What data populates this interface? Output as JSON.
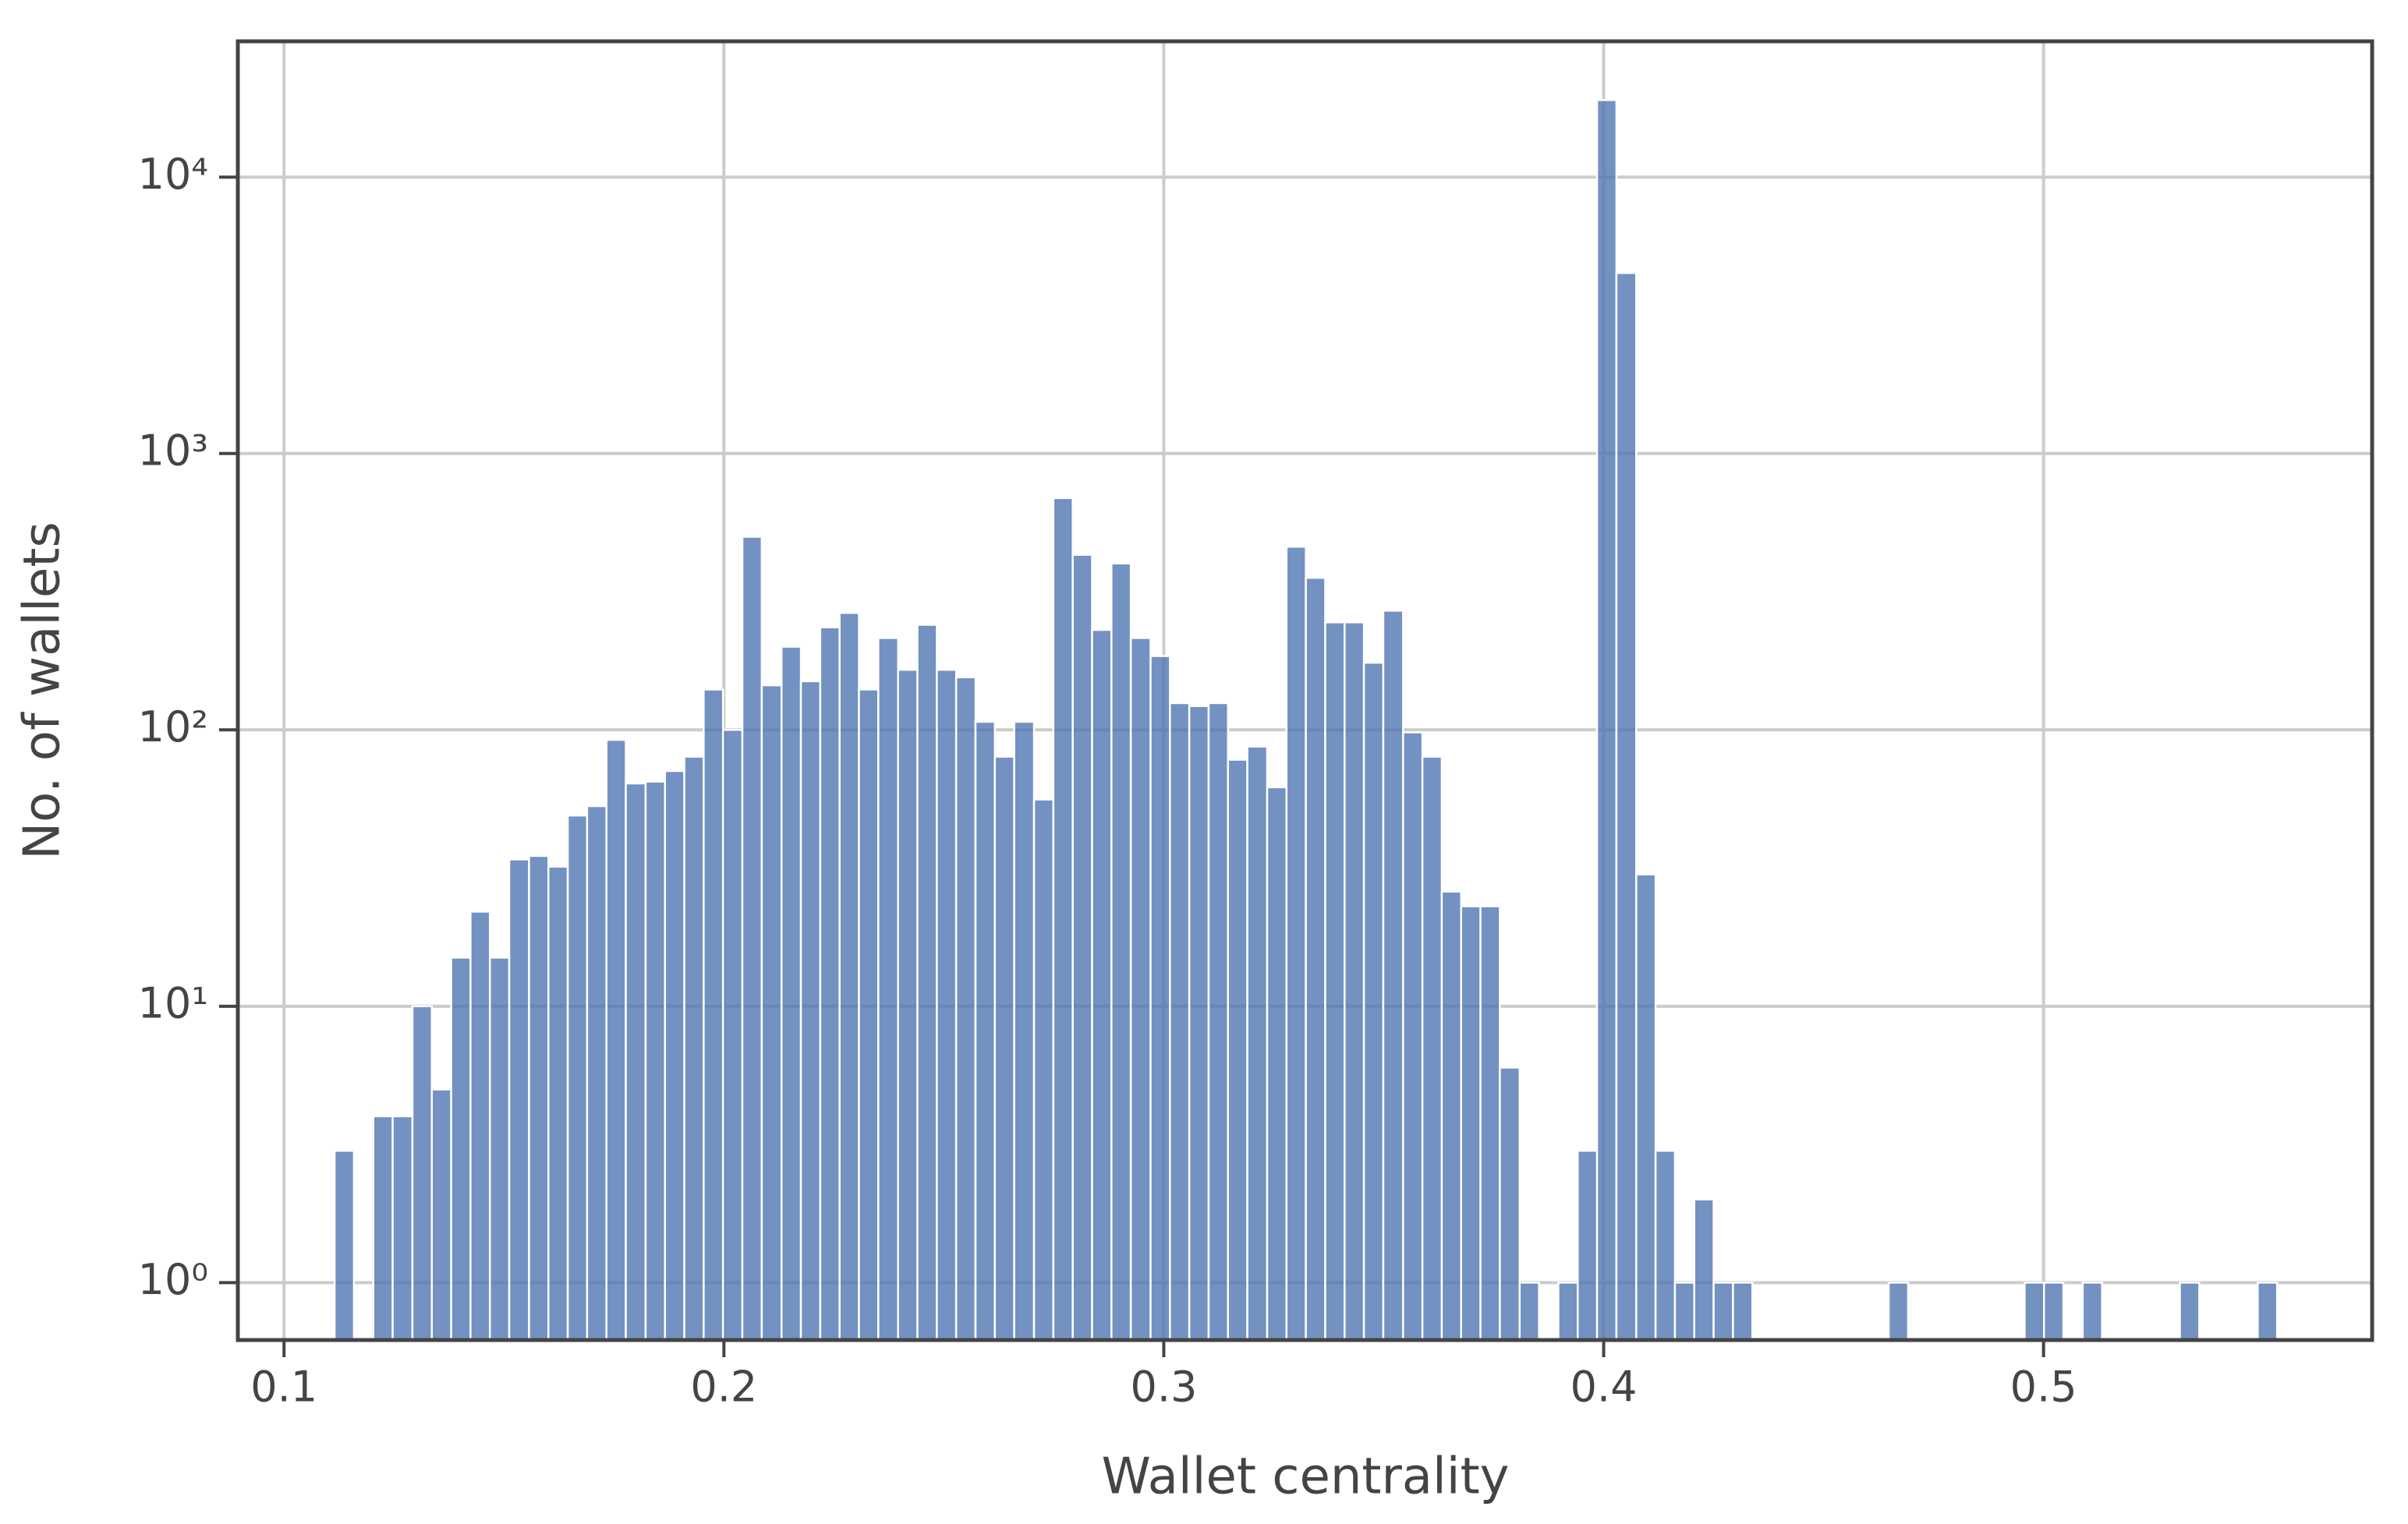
{
  "chart_data": {
    "type": "histogram",
    "x_label": "Wallet centrality",
    "y_label": "No. of wallets",
    "color": "#4c72b0",
    "yscale": "log",
    "grid": true,
    "bins": [
      0.1115,
      0.1159,
      0.1203,
      0.1247,
      0.1292,
      0.1336,
      0.138,
      0.1424,
      0.1468,
      0.1512,
      0.1557,
      0.1601,
      0.1645,
      0.1689,
      0.1733,
      0.1777,
      0.1822,
      0.1866,
      0.191,
      0.1954,
      0.1998,
      0.2042,
      0.2086,
      0.2131,
      0.2175,
      0.2219,
      0.2263,
      0.2307,
      0.2351,
      0.2396,
      0.244,
      0.2484,
      0.2528,
      0.2572,
      0.2616,
      0.266,
      0.2705,
      0.2749,
      0.2793,
      0.2837,
      0.2881,
      0.2925,
      0.297,
      0.3014,
      0.3058,
      0.3102,
      0.3146,
      0.319,
      0.3235,
      0.3279,
      0.3323,
      0.3367,
      0.3411,
      0.3455,
      0.3499,
      0.3544,
      0.3588,
      0.3632,
      0.3676,
      0.372,
      0.3764,
      0.3809,
      0.3853,
      0.3897,
      0.3941,
      0.3985,
      0.4029,
      0.4074,
      0.4118,
      0.4162,
      0.4206,
      0.425,
      0.4294,
      0.4338,
      0.4383,
      0.4427,
      0.4471,
      0.4515,
      0.4559,
      0.4603,
      0.4648,
      0.4692,
      0.4736,
      0.478,
      0.4824,
      0.4868,
      0.4913,
      0.4957,
      0.5001,
      0.5045,
      0.5089,
      0.5133,
      0.5177,
      0.5222,
      0.5266,
      0.531,
      0.5354,
      0.5398,
      0.5442,
      0.5487,
      0.5531
    ],
    "values": [
      3,
      0,
      4,
      4,
      10,
      5,
      15,
      22,
      15,
      34,
      35,
      32,
      49,
      53,
      92,
      64,
      65,
      71,
      80,
      140,
      100,
      500,
      145,
      200,
      150,
      235,
      265,
      140,
      215,
      165,
      240,
      165,
      155,
      107,
      80,
      107,
      56,
      690,
      430,
      230,
      400,
      215,
      185,
      125,
      122,
      125,
      78,
      87,
      62,
      460,
      355,
      245,
      245,
      175,
      270,
      98,
      80,
      26,
      23,
      23,
      6,
      1,
      0,
      1,
      3,
      19000,
      4500,
      30,
      3,
      1,
      2,
      1,
      1,
      0,
      0,
      0,
      0,
      0,
      0,
      0,
      1,
      0,
      0,
      0,
      0,
      0,
      0,
      1,
      1,
      0,
      1,
      0,
      0,
      0,
      0,
      1,
      0,
      0,
      0,
      1
    ],
    "xlim": [
      0.0895,
      0.5747
    ],
    "xticks": [
      0.1,
      0.2,
      0.3,
      0.4,
      0.5
    ],
    "ylim": [
      0.62,
      31000
    ],
    "yticks": [
      {
        "value": 1,
        "label": "10⁰"
      },
      {
        "value": 10,
        "label": "10¹"
      },
      {
        "value": 100,
        "label": "10²"
      },
      {
        "value": 1000,
        "label": "10³"
      },
      {
        "value": 10000,
        "label": "10⁴"
      }
    ]
  }
}
